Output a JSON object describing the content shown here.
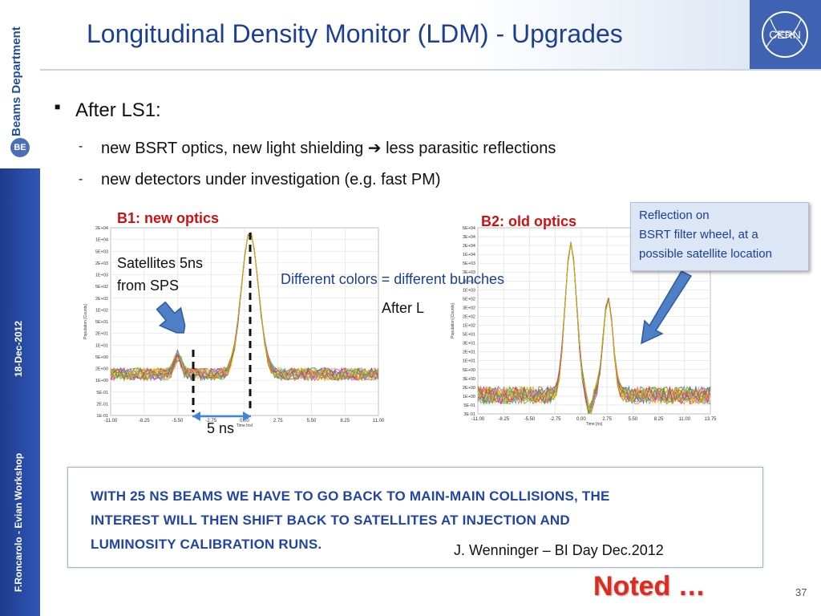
{
  "slide": {
    "title": "Longitudinal Density Monitor (LDM) - Upgrades",
    "page_number": "37"
  },
  "sidebar": {
    "department": "Beams Department",
    "badge": "BE",
    "date": "18-Dec-2012",
    "author": "F.Roncarolo - Evian Workshop"
  },
  "logo": {
    "text": "CERN"
  },
  "bullets": {
    "main": "After LS1:",
    "sub1_prefix": "new BSRT optics, new light shielding",
    "sub1_arrow": "➔",
    "sub1_suffix": "less parasitic reflections",
    "sub2": "new detectors under investigation (e.g. fast PM)",
    "dash": "-",
    "marker": "■"
  },
  "labels": {
    "b1": "B1: new optics",
    "b2": "B2: old optics",
    "satellites_1": "Satellites 5ns",
    "satellites_2": "from SPS",
    "colors_note": "Different colors = different bunches",
    "after_l": "After L",
    "five_ns": "5 ns"
  },
  "callout": {
    "line1": "Reflection on",
    "line2": "BSRT filter wheel,  at a",
    "line3": "possible satellite location"
  },
  "conclusion": {
    "line1": "WITH 25 NS BEAMS WE HAVE TO GO BACK TO MAIN-MAIN COLLISIONS, THE",
    "line2": "INTEREST WILL THEN SHIFT BACK TO SATELLITES AT INJECTION AND",
    "line3": "LUMINOSITY CALIBRATION RUNS.",
    "source": "J. Wenninger – BI Day Dec.2012"
  },
  "noted": "Noted …",
  "colors": {
    "title_blue": "#1b3e97",
    "label_red": "#cc1111",
    "note_blue": "#1a3f9b",
    "arrow_fill": "#4f7fc6",
    "noted_red": "#e0291f"
  },
  "chart_data": [
    {
      "type": "line",
      "title": "",
      "xlabel": "Time [ns]",
      "ylabel": "Population [Counts]",
      "x_ticks": [
        "-11.00",
        "-8.25",
        "-5.50",
        "-2.75",
        "0.00",
        "2.75",
        "5.50",
        "8.25",
        "11.00"
      ],
      "y_ticks": [
        "2E+04",
        "1E+04",
        "5E+03",
        "2E+03",
        "1E+03",
        "5E+02",
        "2E+02",
        "1E+02",
        "5E+01",
        "2E+01",
        "1E+01",
        "5E+00",
        "2E+00",
        "1E+00",
        "5E-01",
        "2E-01",
        "1E-01"
      ],
      "ylim": [
        0.1,
        20000
      ],
      "log_y": true,
      "grid": true
    },
    {
      "type": "line",
      "title": "",
      "xlabel": "Time [ns]",
      "ylabel": "Population [Counts]",
      "x_ticks": [
        "-11.00",
        "-8.25",
        "-5.50",
        "-2.75",
        "0.00",
        "2.75",
        "5.50",
        "8.25",
        "11.00",
        "13.75"
      ],
      "y_ticks": [
        "5E+04",
        "3E+04",
        "2E+04",
        "1E+04",
        "5E+03",
        "3E+03",
        "2E+03",
        "1E+03",
        "5E+02",
        "3E+02",
        "2E+02",
        "1E+02",
        "5E+01",
        "3E+01",
        "2E+01",
        "1E+01",
        "5E+00",
        "3E+00",
        "2E+00",
        "1E+00",
        "5E-01",
        "3E-01"
      ],
      "ylim": [
        0.3,
        50000
      ],
      "log_y": true,
      "grid": true
    }
  ]
}
